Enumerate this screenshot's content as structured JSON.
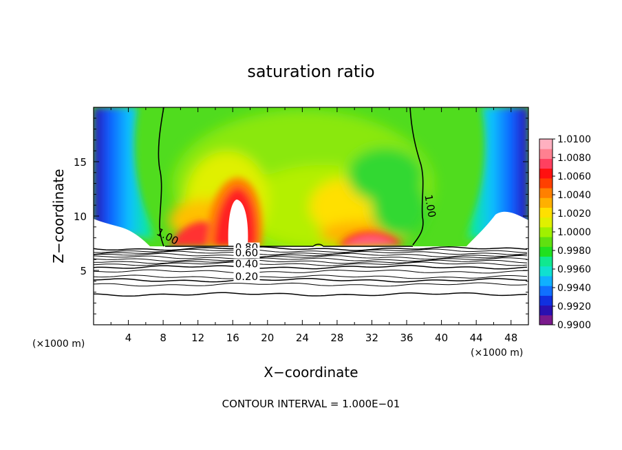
{
  "chart_data": {
    "type": "heatmap",
    "title": "saturation ratio",
    "xlabel": "X−coordinate",
    "ylabel": "Z−coordinate",
    "x_units_left": "(×1000 m)",
    "x_units_right": "(×1000 m)",
    "x_ticks": [
      "4",
      "8",
      "12",
      "16",
      "20",
      "24",
      "28",
      "32",
      "36",
      "40",
      "44",
      "48"
    ],
    "y_ticks": [
      "5",
      "10",
      "15"
    ],
    "xlim": [
      0,
      50
    ],
    "ylim": [
      0,
      20
    ],
    "contour_interval_text": "CONTOUR INTERVAL = 1.000E−01",
    "colorbar": {
      "labels": [
        "1.0100",
        "1.0080",
        "1.0060",
        "1.0040",
        "1.0020",
        "1.0000",
        "0.9980",
        "0.9960",
        "0.9940",
        "0.9920",
        "0.9900"
      ],
      "range": [
        0.99,
        1.01
      ],
      "colors": [
        "#7a1a8c",
        "#2a10b0",
        "#1030e0",
        "#1070ff",
        "#10b0ff",
        "#10e0d0",
        "#10e890",
        "#20e020",
        "#60e010",
        "#a0f000",
        "#e0f000",
        "#ffe000",
        "#ffb000",
        "#ff8000",
        "#ff4000",
        "#ff1010",
        "#ff4060",
        "#ff8090",
        "#ffb0c0"
      ]
    },
    "contour_labels": [
      {
        "text": "1.00",
        "x": 8.5,
        "z": 7.8
      },
      {
        "text": "1.00",
        "x": 38.7,
        "z": 10.6
      },
      {
        "text": "0.80",
        "x": 17.6,
        "z": 6.8
      },
      {
        "text": "0.60",
        "x": 17.6,
        "z": 6.3
      },
      {
        "text": "0.40",
        "x": 17.6,
        "z": 5.3
      },
      {
        "text": "0.20",
        "x": 17.6,
        "z": 4.1
      }
    ],
    "contour_levels_below": [
      0.2,
      0.4,
      0.6,
      0.8,
      1.0
    ],
    "cloud_base_z": 7.2,
    "x": [
      0,
      50
    ],
    "z": [
      0,
      20
    ],
    "description_free": true
  }
}
